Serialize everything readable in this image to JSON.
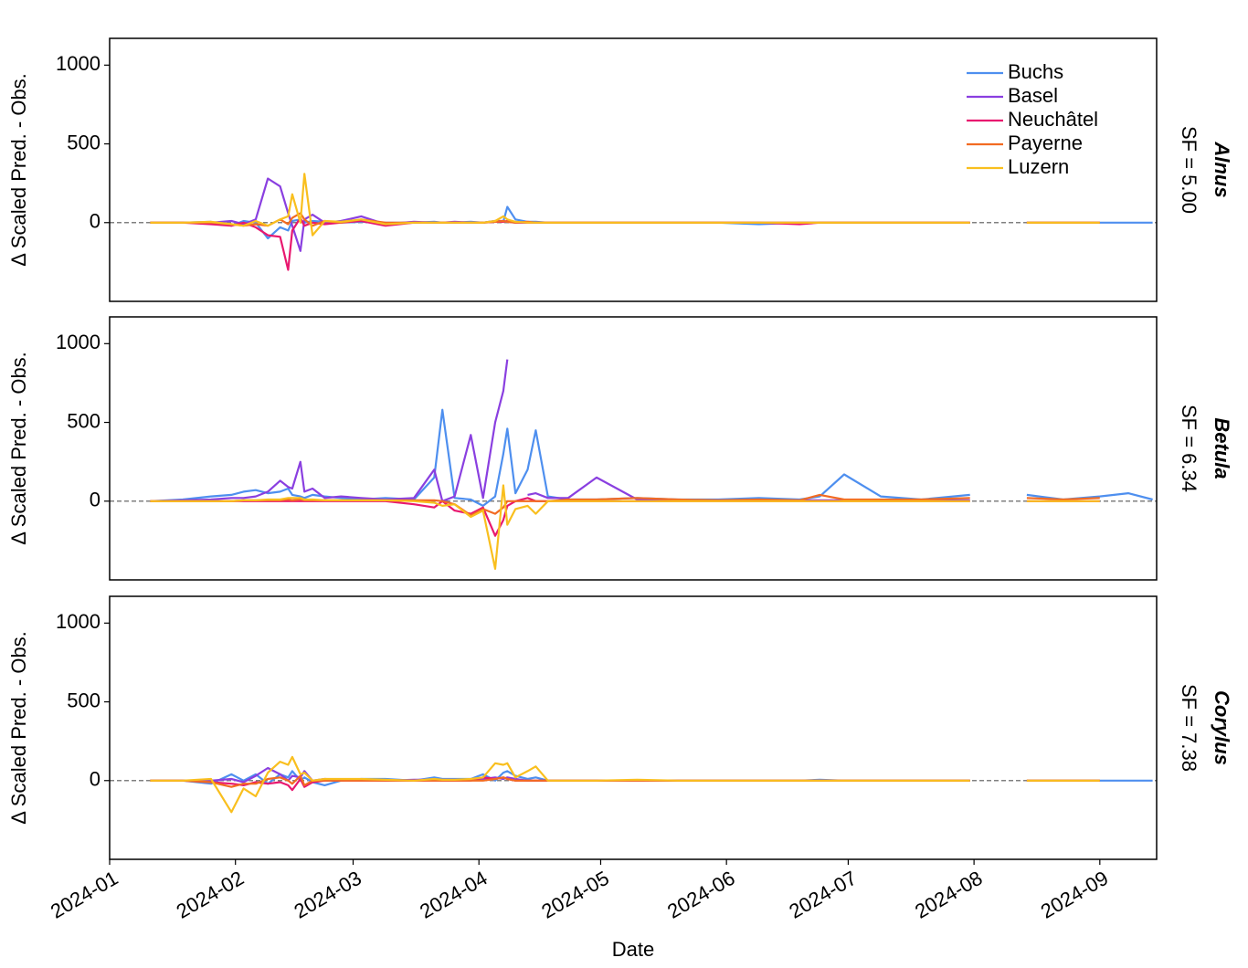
{
  "chart_data": [
    {
      "type": "line",
      "title": "Alnus",
      "subtitle": "SF = 5.00",
      "ylabel": "Δ Scaled Pred. - Obs.",
      "x": [
        10,
        18,
        25,
        30,
        33,
        36,
        39,
        42,
        44,
        45,
        47,
        48,
        50,
        53,
        57,
        62,
        68,
        75,
        80,
        82,
        85,
        89,
        92,
        95,
        97,
        98,
        100,
        103,
        105,
        108,
        113,
        120,
        130,
        140,
        150,
        160,
        170,
        175,
        181,
        190,
        200,
        212,
        219,
        226,
        235,
        244,
        251,
        257
      ],
      "xlim": [
        0,
        258
      ],
      "ylim": [
        -500,
        1170
      ],
      "yticks": [
        0,
        500,
        1000
      ],
      "reference_line": 0,
      "legend": "upper right",
      "series": [
        {
          "name": "Buchs",
          "color": "#4e8fef",
          "values": [
            0,
            0,
            5,
            -20,
            10,
            0,
            -100,
            -30,
            -50,
            10,
            20,
            0,
            10,
            5,
            0,
            5,
            0,
            0,
            5,
            0,
            0,
            5,
            0,
            10,
            5,
            100,
            20,
            5,
            5,
            0,
            0,
            0,
            0,
            0,
            0,
            -10,
            0,
            0,
            0,
            0,
            0,
            0,
            null,
            0,
            0,
            0,
            0,
            0
          ]
        },
        {
          "name": "Basel",
          "color": "#8a3fe0",
          "values": [
            0,
            0,
            0,
            10,
            -10,
            20,
            280,
            230,
            60,
            -20,
            -180,
            20,
            50,
            0,
            10,
            40,
            -10,
            5,
            0,
            0,
            5,
            0,
            0,
            10,
            10,
            5,
            0,
            0,
            0,
            0,
            0,
            0,
            0,
            0,
            0,
            0,
            0,
            0,
            0,
            0,
            0,
            0,
            null,
            0,
            0,
            0,
            null,
            null
          ]
        },
        {
          "name": "Neuchâtel",
          "color": "#e8186f",
          "values": [
            0,
            0,
            -10,
            -20,
            0,
            -30,
            -80,
            -90,
            -300,
            -50,
            30,
            -20,
            0,
            -10,
            0,
            10,
            -20,
            0,
            0,
            0,
            0,
            0,
            0,
            5,
            5,
            10,
            0,
            0,
            0,
            0,
            0,
            0,
            0,
            0,
            0,
            0,
            -10,
            0,
            0,
            0,
            0,
            0,
            null,
            0,
            0,
            0,
            null,
            null
          ]
        },
        {
          "name": "Payerne",
          "color": "#f26b22",
          "values": [
            0,
            0,
            0,
            -10,
            -20,
            -10,
            -20,
            20,
            -10,
            30,
            60,
            20,
            -20,
            10,
            0,
            20,
            0,
            0,
            0,
            0,
            0,
            0,
            0,
            5,
            10,
            5,
            0,
            5,
            0,
            0,
            0,
            0,
            0,
            0,
            0,
            0,
            0,
            0,
            0,
            0,
            0,
            0,
            null,
            0,
            0,
            0,
            null,
            null
          ]
        },
        {
          "name": "Luzern",
          "color": "#f9bf1e",
          "values": [
            0,
            0,
            5,
            -10,
            -20,
            10,
            -20,
            20,
            40,
            180,
            0,
            310,
            -80,
            10,
            5,
            20,
            -10,
            0,
            0,
            0,
            0,
            0,
            0,
            10,
            40,
            20,
            5,
            0,
            0,
            0,
            0,
            0,
            0,
            0,
            0,
            0,
            0,
            0,
            0,
            0,
            0,
            0,
            null,
            0,
            0,
            0,
            null,
            null
          ]
        }
      ]
    },
    {
      "type": "line",
      "title": "Betula",
      "subtitle": "SF = 6.34",
      "ylabel": "Δ Scaled Pred. - Obs.",
      "x": [
        10,
        18,
        25,
        30,
        33,
        36,
        39,
        42,
        44,
        45,
        47,
        48,
        50,
        53,
        57,
        62,
        68,
        75,
        80,
        82,
        85,
        89,
        92,
        95,
        97,
        98,
        100,
        103,
        105,
        108,
        113,
        120,
        130,
        140,
        150,
        160,
        170,
        175,
        181,
        190,
        200,
        212,
        219,
        226,
        235,
        244,
        251,
        257
      ],
      "xlim": [
        0,
        258
      ],
      "ylim": [
        -500,
        1170
      ],
      "yticks": [
        0,
        500,
        1000
      ],
      "reference_line": 0,
      "series": [
        {
          "color": "#4e8fef",
          "values": [
            0,
            10,
            30,
            40,
            60,
            70,
            50,
            60,
            80,
            40,
            30,
            20,
            40,
            30,
            20,
            10,
            20,
            10,
            150,
            580,
            20,
            10,
            -30,
            30,
            300,
            460,
            50,
            200,
            450,
            30,
            10,
            10,
            20,
            10,
            10,
            20,
            10,
            30,
            170,
            30,
            10,
            40,
            null,
            40,
            10,
            30,
            50,
            10
          ]
        },
        {
          "color": "#8a3fe0",
          "values": [
            0,
            5,
            10,
            20,
            20,
            30,
            60,
            130,
            90,
            80,
            250,
            60,
            80,
            20,
            30,
            20,
            10,
            20,
            200,
            0,
            30,
            420,
            20,
            500,
            700,
            900,
            null,
            40,
            50,
            20,
            20,
            150,
            10,
            5,
            5,
            5,
            5,
            5,
            5,
            5,
            5,
            5,
            null,
            null,
            null,
            null,
            null,
            null
          ]
        },
        {
          "color": "#e8186f",
          "values": [
            0,
            0,
            0,
            0,
            0,
            0,
            0,
            0,
            0,
            0,
            0,
            0,
            0,
            0,
            0,
            0,
            0,
            -20,
            -40,
            0,
            -60,
            -80,
            -40,
            -220,
            -120,
            -30,
            0,
            20,
            0,
            0,
            0,
            0,
            0,
            0,
            0,
            0,
            0,
            0,
            0,
            0,
            0,
            0,
            null,
            0,
            0,
            0,
            null,
            null
          ]
        },
        {
          "color": "#f26b22",
          "values": [
            0,
            0,
            0,
            0,
            5,
            5,
            5,
            5,
            10,
            5,
            10,
            5,
            5,
            5,
            5,
            5,
            5,
            5,
            5,
            0,
            -20,
            -90,
            -50,
            -80,
            -40,
            0,
            0,
            0,
            0,
            0,
            10,
            10,
            20,
            10,
            5,
            10,
            5,
            40,
            10,
            10,
            10,
            20,
            null,
            20,
            10,
            20,
            null,
            null
          ]
        },
        {
          "color": "#f9bf1e",
          "values": [
            0,
            0,
            0,
            0,
            5,
            5,
            10,
            10,
            20,
            20,
            20,
            10,
            10,
            5,
            5,
            5,
            5,
            0,
            -10,
            -30,
            -20,
            -100,
            -60,
            -430,
            100,
            -150,
            -50,
            -30,
            -80,
            0,
            0,
            0,
            0,
            0,
            0,
            0,
            0,
            0,
            0,
            0,
            0,
            0,
            null,
            0,
            0,
            0,
            null,
            null
          ]
        }
      ]
    },
    {
      "type": "line",
      "title": "Corylus",
      "subtitle": "SF = 7.38",
      "ylabel": "Δ Scaled Pred. - Obs.",
      "xlabel": "Date",
      "x": [
        10,
        18,
        25,
        30,
        33,
        36,
        39,
        42,
        44,
        45,
        47,
        48,
        50,
        53,
        57,
        62,
        68,
        75,
        80,
        82,
        85,
        89,
        92,
        95,
        97,
        98,
        100,
        103,
        105,
        108,
        113,
        120,
        130,
        140,
        150,
        160,
        170,
        175,
        181,
        190,
        200,
        212,
        219,
        226,
        235,
        244,
        251,
        257
      ],
      "xlim": [
        0,
        258
      ],
      "ylim": [
        -500,
        1170
      ],
      "yticks": [
        0,
        500,
        1000
      ],
      "reference_line": 0,
      "xticks": [
        {
          "value": 0,
          "label": "2024-01"
        },
        {
          "value": 31,
          "label": "2024-02"
        },
        {
          "value": 60,
          "label": "2024-03"
        },
        {
          "value": 91,
          "label": "2024-04"
        },
        {
          "value": 121,
          "label": "2024-05"
        },
        {
          "value": 152,
          "label": "2024-06"
        },
        {
          "value": 182,
          "label": "2024-07"
        },
        {
          "value": 213,
          "label": "2024-08"
        },
        {
          "value": 244,
          "label": "2024-09"
        }
      ],
      "series": [
        {
          "color": "#4e8fef",
          "values": [
            0,
            0,
            -20,
            40,
            0,
            40,
            -20,
            40,
            20,
            60,
            0,
            20,
            -10,
            -30,
            0,
            10,
            10,
            0,
            20,
            10,
            10,
            10,
            40,
            0,
            50,
            60,
            30,
            10,
            20,
            0,
            0,
            0,
            0,
            0,
            0,
            0,
            0,
            5,
            0,
            0,
            0,
            0,
            null,
            0,
            0,
            0,
            0,
            0
          ]
        },
        {
          "color": "#8a3fe0",
          "values": [
            0,
            0,
            0,
            10,
            -10,
            30,
            80,
            40,
            0,
            30,
            20,
            60,
            0,
            10,
            5,
            5,
            0,
            5,
            5,
            5,
            5,
            5,
            10,
            20,
            10,
            20,
            10,
            0,
            0,
            0,
            0,
            0,
            0,
            0,
            0,
            0,
            0,
            0,
            0,
            0,
            0,
            0,
            null,
            0,
            0,
            0,
            null,
            null
          ]
        },
        {
          "color": "#e8186f",
          "values": [
            0,
            0,
            -10,
            -20,
            -30,
            -10,
            -20,
            -10,
            -30,
            -60,
            10,
            -40,
            -10,
            0,
            0,
            0,
            0,
            0,
            0,
            0,
            0,
            0,
            20,
            10,
            20,
            10,
            0,
            0,
            0,
            0,
            0,
            0,
            0,
            0,
            0,
            0,
            0,
            0,
            0,
            0,
            0,
            0,
            null,
            0,
            0,
            0,
            null,
            null
          ]
        },
        {
          "color": "#f26b22",
          "values": [
            0,
            0,
            -10,
            -40,
            -20,
            -20,
            10,
            20,
            0,
            -20,
            30,
            -30,
            0,
            0,
            0,
            0,
            0,
            0,
            0,
            0,
            0,
            0,
            0,
            10,
            20,
            10,
            0,
            0,
            0,
            0,
            0,
            0,
            0,
            0,
            0,
            0,
            0,
            0,
            0,
            0,
            0,
            0,
            null,
            0,
            0,
            0,
            null,
            null
          ]
        },
        {
          "color": "#f9bf1e",
          "values": [
            0,
            0,
            10,
            -200,
            -50,
            -100,
            50,
            120,
            100,
            150,
            40,
            50,
            0,
            10,
            10,
            10,
            5,
            0,
            10,
            5,
            5,
            10,
            20,
            110,
            100,
            110,
            20,
            60,
            90,
            0,
            0,
            0,
            5,
            0,
            0,
            0,
            0,
            0,
            0,
            0,
            0,
            0,
            null,
            0,
            0,
            0,
            null,
            null
          ]
        }
      ]
    }
  ]
}
